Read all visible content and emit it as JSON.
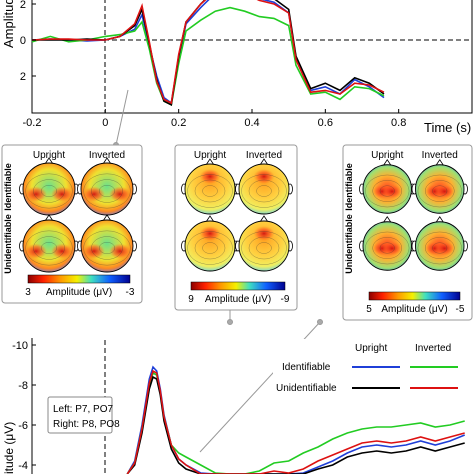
{
  "chart_data": [
    {
      "type": "line",
      "name": "top-erp",
      "xlabel": "Time (s)",
      "ylabel": "Amplitude",
      "xlim": [
        -0.2,
        1.0
      ],
      "ylim": [
        -2.5,
        3.2
      ],
      "y_inverted": true,
      "x_ticks": [
        "-0.2",
        "0",
        "0.2",
        "0.4",
        "0.6",
        "0.8"
      ],
      "y_ticks": [
        "2",
        "0",
        "2"
      ],
      "y_tick_values": [
        -2,
        0,
        2
      ],
      "series": [
        {
          "color": "#1f3fd8",
          "x": [
            -0.2,
            -0.15,
            -0.1,
            -0.05,
            0,
            0.04,
            0.08,
            0.1,
            0.12,
            0.14,
            0.16,
            0.18,
            0.2,
            0.22,
            0.26,
            0.3,
            0.34,
            0.38,
            0.42,
            0.46,
            0.5,
            0.52,
            0.56,
            0.6,
            0.64,
            0.68,
            0.72,
            0.76
          ],
          "y": [
            0,
            0.05,
            0,
            -0.05,
            0,
            0.2,
            0.6,
            1.4,
            -0.3,
            -2.0,
            -3.2,
            -3.5,
            -1.0,
            0.9,
            1.8,
            2.6,
            2.9,
            2.7,
            2.3,
            2.1,
            1.5,
            -1.0,
            -2.8,
            -2.6,
            -3.0,
            -2.2,
            -2.6,
            -3.2
          ]
        },
        {
          "color": "#22cc22",
          "x": [
            -0.2,
            -0.15,
            -0.1,
            -0.05,
            0,
            0.04,
            0.08,
            0.1,
            0.12,
            0.14,
            0.16,
            0.18,
            0.2,
            0.22,
            0.26,
            0.3,
            0.34,
            0.38,
            0.42,
            0.46,
            0.5,
            0.52,
            0.56,
            0.6,
            0.64,
            0.68,
            0.72,
            0.76
          ],
          "y": [
            -0.1,
            0.2,
            -0.1,
            0,
            0.2,
            0.3,
            0.5,
            1.0,
            -0.5,
            -2.4,
            -3.4,
            -3.6,
            -1.3,
            0.5,
            1.1,
            1.6,
            1.8,
            1.6,
            1.3,
            1.2,
            0.8,
            -1.4,
            -3.0,
            -2.9,
            -3.3,
            -2.6,
            -2.7,
            -3.1
          ]
        },
        {
          "color": "#000000",
          "x": [
            -0.2,
            -0.15,
            -0.1,
            -0.05,
            0,
            0.04,
            0.08,
            0.1,
            0.12,
            0.14,
            0.16,
            0.18,
            0.2,
            0.22,
            0.26,
            0.3,
            0.34,
            0.38,
            0.42,
            0.46,
            0.5,
            0.52,
            0.56,
            0.6,
            0.64,
            0.68,
            0.72,
            0.76
          ],
          "y": [
            0,
            0,
            0,
            0.05,
            0,
            0.2,
            0.8,
            1.7,
            -0.2,
            -2.2,
            -3.4,
            -3.6,
            -0.9,
            1.0,
            2.0,
            2.8,
            3.1,
            2.9,
            2.5,
            2.3,
            1.7,
            -0.9,
            -2.7,
            -2.4,
            -2.8,
            -2.1,
            -2.4,
            -3.0
          ]
        },
        {
          "color": "#dd1111",
          "x": [
            -0.2,
            -0.15,
            -0.1,
            -0.05,
            0,
            0.04,
            0.08,
            0.1,
            0.12,
            0.14,
            0.16,
            0.18,
            0.2,
            0.22,
            0.26,
            0.3,
            0.34,
            0.38,
            0.42,
            0.46,
            0.5,
            0.52,
            0.56,
            0.6,
            0.64,
            0.68,
            0.72,
            0.76
          ],
          "y": [
            0,
            0.05,
            0.05,
            0,
            0,
            0.2,
            0.9,
            1.9,
            -0.1,
            -2.3,
            -3.3,
            -3.5,
            -0.8,
            1.0,
            2.0,
            2.7,
            2.9,
            2.6,
            2.2,
            2.0,
            1.5,
            -1.1,
            -2.9,
            -2.8,
            -3.0,
            -2.4,
            -2.5,
            -2.9
          ]
        }
      ]
    },
    {
      "type": "heatmap",
      "name": "topographic-maps",
      "column_labels": [
        "Upright",
        "Inverted"
      ],
      "row_labels": [
        "Identifiable",
        "Unidentifiable"
      ],
      "amplitude_label": "Amplitude (μV)",
      "panels": [
        {
          "scale_min": "3",
          "scale_max": "-3"
        },
        {
          "scale_min": "9",
          "scale_max": "-9"
        },
        {
          "scale_min": "5",
          "scale_max": "-5"
        }
      ]
    },
    {
      "type": "line",
      "name": "bottom-erp",
      "ylabel": "itude (μV)",
      "xlim": [
        -0.2,
        1.0
      ],
      "ylim": [
        -10.5,
        -3.5
      ],
      "y_ticks": [
        "-10",
        "-8",
        "-6",
        "-4"
      ],
      "y_tick_values": [
        -10,
        -8,
        -6,
        -4
      ],
      "electrode_note": [
        "Left: P7, PO7",
        "Right: P8, PO8"
      ],
      "legend": {
        "columns": [
          "Upright",
          "Inverted"
        ],
        "rows": [
          "Identifiable",
          "Unidentifiable"
        ],
        "colors": [
          [
            "#1f3fd8",
            "#22cc22"
          ],
          [
            "#000000",
            "#dd1111"
          ]
        ]
      },
      "series": [
        {
          "color": "#1f3fd8",
          "x": [
            0.06,
            0.08,
            0.1,
            0.12,
            0.13,
            0.14,
            0.15,
            0.16,
            0.18,
            0.2,
            0.22,
            0.26,
            0.3,
            0.34,
            0.38,
            0.42,
            0.46,
            0.5,
            0.54,
            0.58,
            0.62,
            0.66,
            0.7,
            0.74,
            0.78,
            0.82,
            0.86,
            0.9,
            0.94,
            0.98
          ],
          "y": [
            -3.5,
            -4.2,
            -6.0,
            -8.3,
            -8.9,
            -8.7,
            -7.8,
            -6.5,
            -5.0,
            -4.3,
            -4.0,
            -3.6,
            -3.2,
            -3.0,
            -3.0,
            -3.2,
            -3.5,
            -3.4,
            -3.6,
            -3.9,
            -4.2,
            -4.6,
            -4.9,
            -5.0,
            -4.9,
            -5.0,
            -5.2,
            -5.0,
            -5.2,
            -5.5
          ]
        },
        {
          "color": "#22cc22",
          "x": [
            0.06,
            0.08,
            0.1,
            0.12,
            0.13,
            0.14,
            0.15,
            0.16,
            0.18,
            0.2,
            0.22,
            0.26,
            0.3,
            0.34,
            0.38,
            0.42,
            0.46,
            0.5,
            0.54,
            0.58,
            0.62,
            0.66,
            0.7,
            0.74,
            0.78,
            0.82,
            0.86,
            0.9,
            0.94,
            0.98
          ],
          "y": [
            -3.5,
            -4.1,
            -5.8,
            -8.0,
            -8.6,
            -8.5,
            -7.6,
            -6.4,
            -5.0,
            -4.6,
            -4.4,
            -4.0,
            -3.6,
            -3.4,
            -3.4,
            -3.7,
            -4.1,
            -4.2,
            -4.6,
            -4.9,
            -5.3,
            -5.6,
            -5.8,
            -5.9,
            -5.9,
            -6.0,
            -6.1,
            -5.9,
            -6.0,
            -6.2
          ]
        },
        {
          "color": "#000000",
          "x": [
            0.06,
            0.08,
            0.1,
            0.12,
            0.13,
            0.14,
            0.15,
            0.16,
            0.18,
            0.2,
            0.22,
            0.26,
            0.3,
            0.34,
            0.38,
            0.42,
            0.46,
            0.5,
            0.54,
            0.58,
            0.62,
            0.66,
            0.7,
            0.74,
            0.78,
            0.82,
            0.86,
            0.9,
            0.94,
            0.98
          ],
          "y": [
            -3.4,
            -4.0,
            -5.6,
            -7.8,
            -8.4,
            -8.3,
            -7.5,
            -6.2,
            -4.8,
            -4.1,
            -3.8,
            -3.4,
            -3.0,
            -2.9,
            -2.9,
            -3.1,
            -3.3,
            -3.3,
            -3.5,
            -3.8,
            -4.0,
            -4.4,
            -4.6,
            -4.7,
            -4.6,
            -4.7,
            -4.9,
            -4.7,
            -4.9,
            -5.1
          ]
        },
        {
          "color": "#dd1111",
          "x": [
            0.06,
            0.08,
            0.1,
            0.12,
            0.13,
            0.14,
            0.15,
            0.16,
            0.18,
            0.2,
            0.22,
            0.26,
            0.3,
            0.34,
            0.38,
            0.42,
            0.46,
            0.5,
            0.54,
            0.58,
            0.62,
            0.66,
            0.7,
            0.74,
            0.78,
            0.82,
            0.86,
            0.9,
            0.94,
            0.98
          ],
          "y": [
            -3.5,
            -4.1,
            -5.8,
            -8.1,
            -8.7,
            -8.6,
            -7.7,
            -6.4,
            -5.0,
            -4.3,
            -4.0,
            -3.5,
            -3.1,
            -3.0,
            -3.1,
            -3.4,
            -3.7,
            -3.6,
            -3.8,
            -4.2,
            -4.5,
            -4.8,
            -5.1,
            -5.2,
            -5.1,
            -5.2,
            -5.4,
            -5.2,
            -5.4,
            -5.6
          ]
        }
      ]
    }
  ]
}
